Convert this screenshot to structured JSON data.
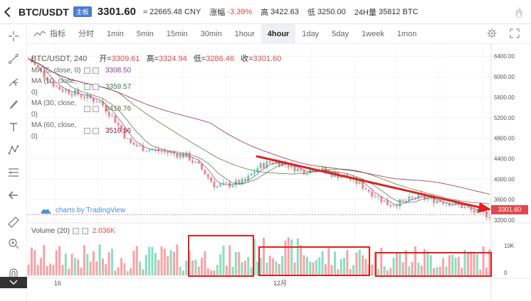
{
  "header": {
    "pair": "BTC/USDT",
    "badge": "主板",
    "price": "3301.60",
    "cny": "≈ 22665.48 CNY",
    "change_label": "涨幅",
    "change_value": "-3.39%",
    "high_label": "高",
    "high_value": "3422.63",
    "low_label": "低",
    "low_value": "3250.00",
    "vol_label": "24H量",
    "vol_value": "35812 BTC"
  },
  "toolbar": {
    "indicators_label": "指标",
    "intervals": [
      "分时",
      "1min",
      "5min",
      "15min",
      "30min",
      "1hour",
      "4hour",
      "1day",
      "5day",
      "1week",
      "1mon"
    ],
    "active_interval": "4hour"
  },
  "chart_legend": {
    "title": "BTC/USDT, 240",
    "open_label": "开=",
    "open_value": "3309.61",
    "high_label": "高=",
    "high_value": "3324.94",
    "low_label": "低=",
    "low_value": "3286.46",
    "close_label": "收=",
    "close_value": "3301.60",
    "ma": [
      {
        "name": "MA (5, close, 0)",
        "value": "3308.50",
        "color": "#8e3fa6"
      },
      {
        "name": "MA (10, close, 0)",
        "value": "3359.57",
        "color": "#3a7c3a"
      },
      {
        "name": "MA (30, close, 0)",
        "value": "3418.76",
        "color": "#556b2f"
      },
      {
        "name": "MA (60, close, 0)",
        "value": "3516.56",
        "color": "#8b1a3a"
      }
    ]
  },
  "volume_legend": {
    "label": "Volume (20)",
    "value": "2.036K"
  },
  "watermark": "charts by TradingView",
  "price_tag": "3301.60",
  "y_axis_labels": [
    "6400.00",
    "6000.00",
    "5600.00",
    "5200.00",
    "4800.00",
    "4400.00",
    "4000.00",
    "3600.00",
    "3200.00"
  ],
  "volume_axis_labels": [
    "10K",
    "0"
  ],
  "x_axis_labels": [
    "16",
    "12月"
  ],
  "colors": {
    "up": "#64d3ae",
    "down": "#f0888c",
    "accent": "#4a7bd0",
    "annotation": "#e02020"
  },
  "chart_data": {
    "type": "line",
    "series": [
      {
        "values": [
          6350,
          6050,
          5780,
          5700,
          5600,
          5500,
          5150,
          4700,
          4600,
          4550,
          4500,
          4450,
          4200,
          3850,
          3900,
          3950,
          4250,
          4350,
          4280,
          4150,
          4220,
          4100,
          4050,
          3900,
          3700,
          3500,
          3550,
          3650,
          3600,
          3550,
          3480,
          3350,
          3300
        ]
      }
    ],
    "ylim": [
      3200,
      6500
    ]
  }
}
